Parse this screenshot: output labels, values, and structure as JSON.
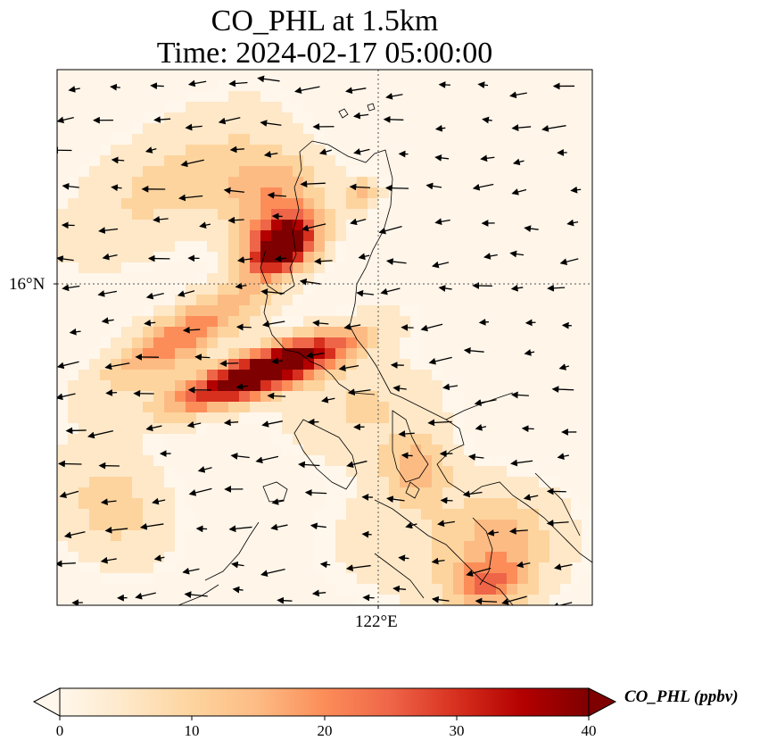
{
  "title_line1": "CO_PHL at 1.5km",
  "title_line2": "Time: 2024-02-17 05:00:00",
  "gridlines": {
    "latitude_label": "16°N",
    "longitude_label": "122°E"
  },
  "colorbar": {
    "label": "CO_PHL (ppbv)",
    "ticks": [
      "0",
      "10",
      "20",
      "30",
      "40"
    ],
    "range": [
      0,
      40
    ],
    "colormap": "OrRd",
    "extend": "both",
    "colors": [
      "#fff7ec",
      "#fee8c8",
      "#fdd49e",
      "#fdbb84",
      "#fc8d59",
      "#ef6548",
      "#d7301f",
      "#b30000",
      "#7f0000"
    ]
  },
  "wind_vectors": "black quiver arrows, mostly pointing west/south-west",
  "coastline_color": "#000000"
}
